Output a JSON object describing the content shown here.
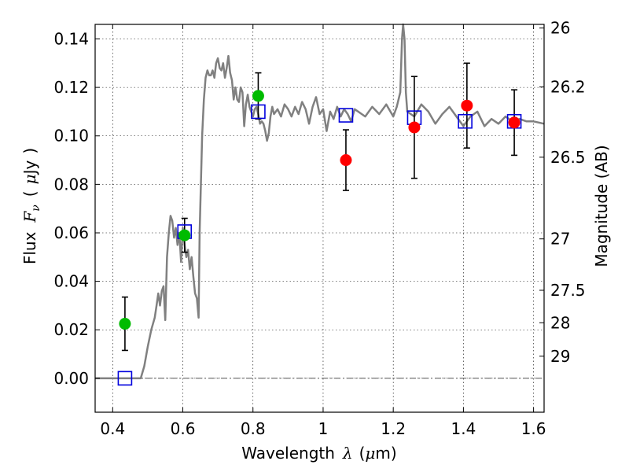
{
  "chart_data": {
    "type": "scatter",
    "xlabel": {
      "text": "Wavelength",
      "symbol": "λ",
      "unit_open": "(",
      "unit_mu": "μ",
      "unit_rest": "m)"
    },
    "ylabel": {
      "text": "Flux",
      "symbol": "F",
      "subscript": "ν",
      "unit_open": "(",
      "unit_mu": "μ",
      "unit_rest": "Jy",
      "unit_close": ")"
    },
    "y2label": "Magnitude (AB)",
    "xlim": [
      0.35,
      1.63
    ],
    "ylim": [
      -0.014,
      0.146
    ],
    "x_ticks": [
      0.4,
      0.6,
      0.8,
      1.0,
      1.2,
      1.4,
      1.6
    ],
    "x_tick_labels": [
      "0.4",
      "0.6",
      "0.8",
      "1",
      "1.2",
      "1.4",
      "1.6"
    ],
    "y_ticks": [
      0.0,
      0.02,
      0.04,
      0.06,
      0.08,
      0.1,
      0.12,
      0.14
    ],
    "y_tick_labels": [
      "0.00",
      "0.02",
      "0.04",
      "0.06",
      "0.08",
      "0.10",
      "0.12",
      "0.14"
    ],
    "right_ticks": [
      {
        "label": "26",
        "flux": 0.1445
      },
      {
        "label": "26.2",
        "flux": 0.1202
      },
      {
        "label": "26.5",
        "flux": 0.0912
      },
      {
        "label": "27",
        "flux": 0.0575
      },
      {
        "label": "27.5",
        "flux": 0.0363
      },
      {
        "label": "28",
        "flux": 0.0229
      },
      {
        "label": "29",
        "flux": 0.0091
      }
    ],
    "grid": true,
    "zero_line": true,
    "colors": {
      "model": "#808080",
      "green": "#00bb00",
      "red": "#ff0000",
      "box": "#0000dd",
      "errorbar": "#000000"
    },
    "model_spectrum": [
      [
        0.35,
        0.0
      ],
      [
        0.48,
        0.0
      ],
      [
        0.49,
        0.005
      ],
      [
        0.5,
        0.013
      ],
      [
        0.51,
        0.02
      ],
      [
        0.52,
        0.025
      ],
      [
        0.525,
        0.03
      ],
      [
        0.53,
        0.035
      ],
      [
        0.535,
        0.03
      ],
      [
        0.54,
        0.036
      ],
      [
        0.545,
        0.038
      ],
      [
        0.55,
        0.024
      ],
      [
        0.555,
        0.05
      ],
      [
        0.56,
        0.06
      ],
      [
        0.565,
        0.067
      ],
      [
        0.57,
        0.065
      ],
      [
        0.575,
        0.058
      ],
      [
        0.58,
        0.062
      ],
      [
        0.585,
        0.055
      ],
      [
        0.59,
        0.06
      ],
      [
        0.595,
        0.048
      ],
      [
        0.6,
        0.062
      ],
      [
        0.605,
        0.055
      ],
      [
        0.61,
        0.05
      ],
      [
        0.615,
        0.053
      ],
      [
        0.62,
        0.045
      ],
      [
        0.625,
        0.05
      ],
      [
        0.63,
        0.042
      ],
      [
        0.635,
        0.035
      ],
      [
        0.64,
        0.033
      ],
      [
        0.645,
        0.025
      ],
      [
        0.648,
        0.06
      ],
      [
        0.655,
        0.1
      ],
      [
        0.66,
        0.115
      ],
      [
        0.665,
        0.124
      ],
      [
        0.67,
        0.127
      ],
      [
        0.675,
        0.125
      ],
      [
        0.68,
        0.125
      ],
      [
        0.685,
        0.127
      ],
      [
        0.69,
        0.124
      ],
      [
        0.695,
        0.13
      ],
      [
        0.7,
        0.132
      ],
      [
        0.705,
        0.128
      ],
      [
        0.71,
        0.127
      ],
      [
        0.715,
        0.13
      ],
      [
        0.72,
        0.124
      ],
      [
        0.725,
        0.128
      ],
      [
        0.73,
        0.133
      ],
      [
        0.735,
        0.126
      ],
      [
        0.74,
        0.123
      ],
      [
        0.745,
        0.115
      ],
      [
        0.75,
        0.12
      ],
      [
        0.755,
        0.115
      ],
      [
        0.76,
        0.114
      ],
      [
        0.765,
        0.12
      ],
      [
        0.77,
        0.118
      ],
      [
        0.775,
        0.104
      ],
      [
        0.78,
        0.113
      ],
      [
        0.785,
        0.117
      ],
      [
        0.79,
        0.112
      ],
      [
        0.8,
        0.108
      ],
      [
        0.805,
        0.111
      ],
      [
        0.81,
        0.112
      ],
      [
        0.815,
        0.109
      ],
      [
        0.82,
        0.105
      ],
      [
        0.825,
        0.106
      ],
      [
        0.83,
        0.105
      ],
      [
        0.835,
        0.102
      ],
      [
        0.84,
        0.098
      ],
      [
        0.845,
        0.101
      ],
      [
        0.85,
        0.108
      ],
      [
        0.855,
        0.112
      ],
      [
        0.86,
        0.109
      ],
      [
        0.87,
        0.111
      ],
      [
        0.88,
        0.108
      ],
      [
        0.89,
        0.113
      ],
      [
        0.9,
        0.111
      ],
      [
        0.91,
        0.108
      ],
      [
        0.92,
        0.112
      ],
      [
        0.93,
        0.109
      ],
      [
        0.94,
        0.114
      ],
      [
        0.95,
        0.111
      ],
      [
        0.96,
        0.105
      ],
      [
        0.97,
        0.112
      ],
      [
        0.98,
        0.116
      ],
      [
        0.99,
        0.109
      ],
      [
        1.0,
        0.111
      ],
      [
        1.01,
        0.102
      ],
      [
        1.02,
        0.11
      ],
      [
        1.03,
        0.107
      ],
      [
        1.04,
        0.112
      ],
      [
        1.05,
        0.108
      ],
      [
        1.06,
        0.111
      ],
      [
        1.07,
        0.109
      ],
      [
        1.08,
        0.106
      ],
      [
        1.09,
        0.111
      ],
      [
        1.1,
        0.11
      ],
      [
        1.12,
        0.108
      ],
      [
        1.14,
        0.112
      ],
      [
        1.16,
        0.109
      ],
      [
        1.18,
        0.113
      ],
      [
        1.2,
        0.108
      ],
      [
        1.21,
        0.112
      ],
      [
        1.22,
        0.118
      ],
      [
        1.225,
        0.14
      ],
      [
        1.228,
        0.146
      ],
      [
        1.232,
        0.14
      ],
      [
        1.236,
        0.118
      ],
      [
        1.24,
        0.11
      ],
      [
        1.26,
        0.108
      ],
      [
        1.28,
        0.113
      ],
      [
        1.3,
        0.11
      ],
      [
        1.32,
        0.105
      ],
      [
        1.34,
        0.109
      ],
      [
        1.36,
        0.112
      ],
      [
        1.38,
        0.108
      ],
      [
        1.4,
        0.104
      ],
      [
        1.42,
        0.108
      ],
      [
        1.44,
        0.11
      ],
      [
        1.46,
        0.104
      ],
      [
        1.48,
        0.107
      ],
      [
        1.5,
        0.105
      ],
      [
        1.52,
        0.108
      ],
      [
        1.54,
        0.106
      ],
      [
        1.56,
        0.107
      ],
      [
        1.58,
        0.106
      ],
      [
        1.6,
        0.106
      ],
      [
        1.63,
        0.105
      ]
    ],
    "green_points": [
      {
        "x": 0.435,
        "y": 0.0225,
        "err": 0.011
      },
      {
        "x": 0.605,
        "y": 0.059,
        "err": 0.007
      },
      {
        "x": 0.815,
        "y": 0.1165,
        "err": 0.0095
      }
    ],
    "red_points": [
      {
        "x": 1.065,
        "y": 0.09,
        "err": 0.0125
      },
      {
        "x": 1.26,
        "y": 0.1035,
        "err": 0.021
      },
      {
        "x": 1.41,
        "y": 0.1125,
        "err": 0.0175
      },
      {
        "x": 1.545,
        "y": 0.1055,
        "err": 0.0135
      }
    ],
    "model_boxes": [
      {
        "x": 0.435,
        "y": 0.0
      },
      {
        "x": 0.605,
        "y": 0.0605
      },
      {
        "x": 0.815,
        "y": 0.11
      },
      {
        "x": 1.065,
        "y": 0.1085
      },
      {
        "x": 1.26,
        "y": 0.1075
      },
      {
        "x": 1.405,
        "y": 0.106
      },
      {
        "x": 1.545,
        "y": 0.106
      }
    ]
  }
}
